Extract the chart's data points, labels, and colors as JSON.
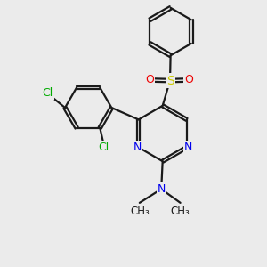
{
  "background_color": "#ebebeb",
  "bond_color": "#1a1a1a",
  "bond_width": 1.6,
  "dbo": 0.055,
  "figsize": [
    3.0,
    3.0
  ],
  "dpi": 100,
  "atom_colors": {
    "C": "#1a1a1a",
    "N": "#0000ee",
    "O": "#ee0000",
    "S": "#cccc00",
    "Cl": "#00aa00"
  },
  "fs": 9.0,
  "fs_small": 8.0
}
